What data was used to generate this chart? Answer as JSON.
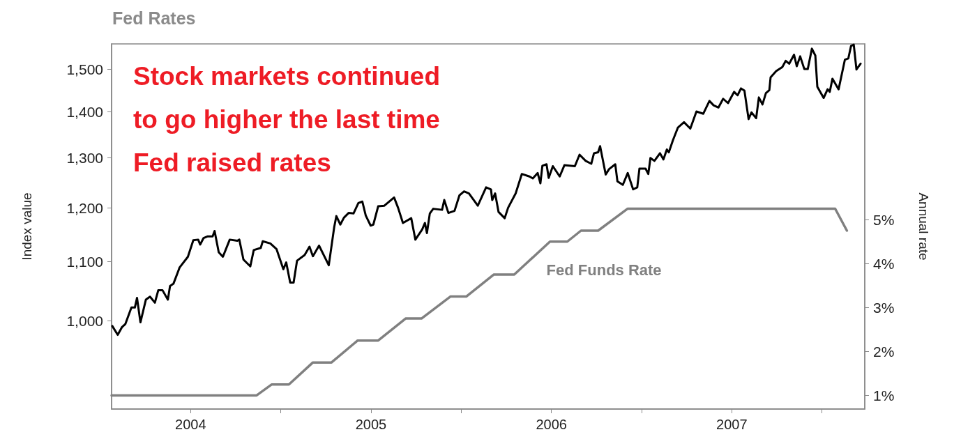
{
  "chart_data": {
    "type": "line",
    "title": "Fed Rates",
    "ylabel": "Index value",
    "y2label": "Annual rate",
    "annotations": [
      "Stock markets continued\nto go higher the last time\nFed raised rates"
    ],
    "log": "y",
    "grid": false,
    "xlim": [
      2003.562,
      2007.737
    ],
    "xticks": [
      2004,
      {
        "value": 2004.5,
        "label": null
      },
      2005,
      {
        "value": 2005.5,
        "label": null
      },
      2006,
      {
        "value": 2006.5,
        "label": null
      },
      2007,
      {
        "value": 2007.5,
        "label": null
      }
    ],
    "ylim": [
      868,
      1562
    ],
    "yticks": [
      {
        "value": 1000,
        "label": "1,000"
      },
      {
        "value": 1100,
        "label": "1,100"
      },
      {
        "value": 1200,
        "label": "1,200"
      },
      {
        "value": 1300,
        "label": "1,300"
      },
      {
        "value": 1400,
        "label": "1,400"
      },
      {
        "value": 1500,
        "label": "1,500"
      }
    ],
    "y2lim": [
      0.69,
      9.0
    ],
    "y2ticks": [
      {
        "value": 1,
        "label": "1%"
      },
      {
        "value": 2,
        "label": "2%"
      },
      {
        "value": 3,
        "label": "3%"
      },
      {
        "value": 4,
        "label": "4%"
      },
      {
        "value": 5,
        "label": "5%"
      }
    ],
    "series": [
      {
        "color": "#000000",
        "x": [
          2003.566,
          2003.596,
          2003.619,
          2003.638,
          2003.672,
          2003.691,
          2003.703,
          2003.722,
          2003.752,
          2003.775,
          2003.802,
          2003.821,
          2003.844,
          2003.874,
          2003.886,
          2003.905,
          2003.939,
          2003.985,
          2004.015,
          2004.042,
          2004.053,
          2004.072,
          2004.095,
          2004.122,
          2004.133,
          2004.156,
          2004.179,
          2004.217,
          2004.259,
          2004.27,
          2004.293,
          2004.331,
          2004.35,
          2004.389,
          2004.4,
          2004.442,
          2004.476,
          2004.514,
          2004.53,
          2004.552,
          2004.571,
          2004.59,
          2004.632,
          2004.659,
          2004.678,
          2004.712,
          2004.766,
          2004.796,
          2004.808,
          2004.83,
          2004.85,
          2004.876,
          2004.903,
          2004.93,
          2004.952,
          2004.971,
          2004.998,
          2005.013,
          2005.04,
          2005.074,
          2005.128,
          2005.15,
          2005.177,
          2005.223,
          2005.246,
          2005.284,
          2005.299,
          2005.31,
          2005.326,
          2005.345,
          2005.394,
          2005.406,
          2005.429,
          2005.463,
          2005.49,
          2005.516,
          2005.543,
          2005.592,
          2005.638,
          2005.665,
          2005.672,
          2005.688,
          2005.707,
          2005.741,
          2005.76,
          2005.802,
          2005.836,
          2005.878,
          2005.897,
          2005.924,
          2005.939,
          2005.95,
          2005.973,
          2005.985,
          2006.008,
          2006.046,
          2006.072,
          2006.13,
          2006.156,
          2006.19,
          2006.221,
          2006.236,
          2006.259,
          2006.27,
          2006.301,
          2006.32,
          2006.354,
          2006.366,
          2006.396,
          2006.423,
          2006.453,
          2006.476,
          2006.488,
          2006.522,
          2006.537,
          2006.549,
          2006.571,
          2006.602,
          2006.621,
          2006.64,
          2006.651,
          2006.674,
          2006.701,
          2006.735,
          2006.77,
          2006.804,
          2006.842,
          2006.876,
          2006.899,
          2006.926,
          2006.952,
          2006.979,
          2007.013,
          2007.032,
          2007.051,
          2007.07,
          2007.093,
          2007.109,
          2007.135,
          2007.15,
          2007.17,
          2007.189,
          2007.208,
          2007.215,
          2007.246,
          2007.28,
          2007.299,
          2007.318,
          2007.345,
          2007.36,
          2007.379,
          2007.402,
          2007.421,
          2007.444,
          2007.463,
          2007.474,
          2007.509,
          2007.531,
          2007.543,
          2007.558,
          2007.592,
          2007.627,
          2007.646,
          2007.661,
          2007.676,
          2007.691,
          2007.714
        ],
        "values": [
          992,
          978,
          990,
          995,
          1022,
          1022,
          1038,
          998,
          1035,
          1040,
          1030,
          1051,
          1051,
          1035,
          1058,
          1062,
          1090,
          1109,
          1139,
          1140,
          1131,
          1143,
          1146,
          1146,
          1156,
          1117,
          1109,
          1140,
          1138,
          1140,
          1104,
          1092,
          1121,
          1125,
          1137,
          1133,
          1123,
          1087,
          1099,
          1064,
          1064,
          1102,
          1112,
          1127,
          1110,
          1129,
          1094,
          1163,
          1184,
          1168,
          1181,
          1190,
          1189,
          1209,
          1212,
          1185,
          1166,
          1168,
          1203,
          1204,
          1220,
          1200,
          1171,
          1180,
          1140,
          1159,
          1171,
          1152,
          1189,
          1198,
          1196,
          1215,
          1190,
          1194,
          1224,
          1232,
          1228,
          1204,
          1240,
          1236,
          1215,
          1228,
          1192,
          1180,
          1200,
          1228,
          1267,
          1262,
          1258,
          1269,
          1248,
          1284,
          1287,
          1259,
          1283,
          1262,
          1285,
          1283,
          1307,
          1294,
          1288,
          1310,
          1312,
          1325,
          1266,
          1277,
          1287,
          1252,
          1245,
          1269,
          1236,
          1240,
          1278,
          1278,
          1267,
          1300,
          1294,
          1310,
          1297,
          1318,
          1312,
          1338,
          1365,
          1377,
          1363,
          1401,
          1396,
          1425,
          1415,
          1410,
          1430,
          1420,
          1446,
          1438,
          1454,
          1449,
          1384,
          1399,
          1386,
          1433,
          1417,
          1443,
          1450,
          1480,
          1495,
          1505,
          1520,
          1513,
          1535,
          1507,
          1531,
          1500,
          1500,
          1550,
          1533,
          1458,
          1432,
          1452,
          1446,
          1477,
          1452,
          1523,
          1526,
          1557,
          1560,
          1499,
          1513
        ]
      },
      {
        "name": "Fed Funds Rate",
        "color": "#808080",
        "axis": "y2",
        "x": [
          2003.562,
          2004.366,
          2004.45,
          2004.545,
          2004.678,
          2004.781,
          2004.926,
          2005.04,
          2005.192,
          2005.28,
          2005.44,
          2005.528,
          2005.68,
          2005.794,
          2005.992,
          2006.088,
          2006.164,
          2006.259,
          2006.423,
          2007.573,
          2007.638
        ],
        "values": [
          1,
          1,
          1.25,
          1.25,
          1.75,
          1.75,
          2.25,
          2.25,
          2.75,
          2.75,
          3.25,
          3.25,
          3.75,
          3.75,
          4.5,
          4.5,
          4.75,
          4.75,
          5.25,
          5.25,
          4.75
        ]
      }
    ]
  }
}
